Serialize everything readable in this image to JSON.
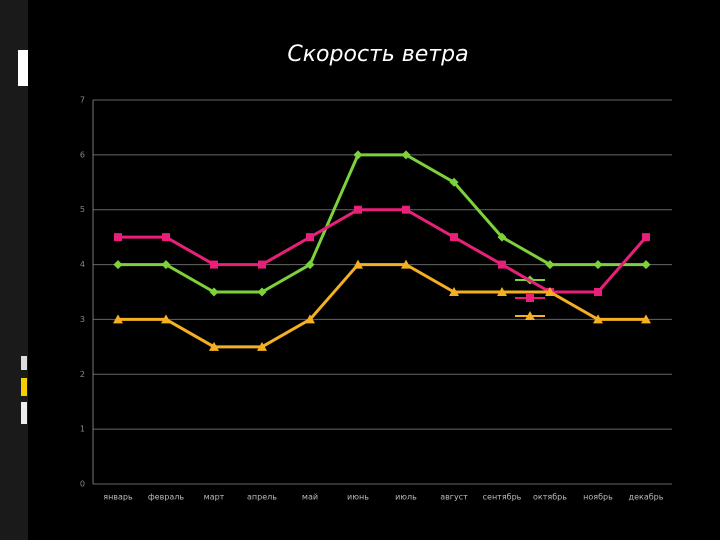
{
  "chart_data": {
    "type": "line",
    "title": "Скорость ветра",
    "categories": [
      "январь",
      "февраль",
      "март",
      "апрель",
      "май",
      "июнь",
      "июль",
      "август",
      "сентябрь",
      "октябрь",
      "ноябрь",
      "декабрь"
    ],
    "series": [
      {
        "color": "#7dd23c",
        "marker": "diamond",
        "values": [
          4,
          4,
          3.5,
          3.5,
          4,
          6,
          6,
          5.5,
          4.5,
          4,
          4,
          4
        ]
      },
      {
        "color": "#e8207a",
        "marker": "square",
        "values": [
          4.5,
          4.5,
          4,
          4,
          4.5,
          5,
          5,
          4.5,
          4,
          3.5,
          3.5,
          4.5
        ]
      },
      {
        "color": "#f5b021",
        "marker": "triangle",
        "values": [
          3,
          3,
          2.5,
          2.5,
          3,
          4,
          4,
          3.5,
          3.5,
          3.5,
          3,
          3
        ]
      }
    ],
    "ylim": [
      0,
      7
    ],
    "yticks": [
      0,
      1,
      2,
      3,
      4,
      5,
      6,
      7
    ],
    "grid": true
  }
}
